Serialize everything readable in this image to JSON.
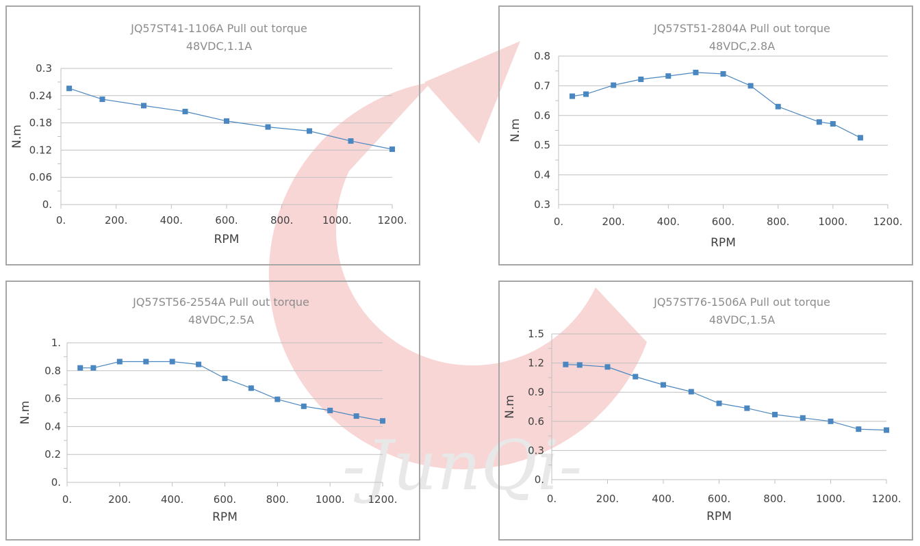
{
  "watermark": {
    "brand_text": "-JunQi-",
    "logo_color": "#f4c7c7",
    "text_color": "#e6e6e6"
  },
  "colors": {
    "series": "#4a86bf",
    "marker": "#4a86bf",
    "grid": "#bfbfbf",
    "frame": "#a6a6a6"
  },
  "chart_data": [
    {
      "type": "line",
      "title": "JQ57ST41-1106A Pull out torque",
      "subtitle": "48VDC,1.1A",
      "xlabel": "RPM",
      "ylabel": "N.m",
      "xlim": [
        0,
        1200
      ],
      "ylim": [
        0,
        0.3
      ],
      "xticks": [
        "0.",
        "200.",
        "400.",
        "600.",
        "800.",
        "1000.",
        "1200."
      ],
      "yticks": [
        "0.",
        "0.06",
        "0.12",
        "0.18",
        "0.24",
        "0.3"
      ],
      "grid": true,
      "series": [
        {
          "x": [
            30,
            150,
            300,
            450,
            600,
            750,
            900,
            1050,
            1200
          ],
          "y": [
            0.256,
            0.232,
            0.218,
            0.205,
            0.184,
            0.171,
            0.162,
            0.14,
            0.122
          ]
        }
      ]
    },
    {
      "type": "line",
      "title": "JQ57ST51-2804A Pull out torque",
      "subtitle": "48VDC,2.8A",
      "xlabel": "RPM",
      "ylabel": "N.m",
      "xlim": [
        0,
        1200
      ],
      "ylim": [
        0.3,
        0.8
      ],
      "xticks": [
        "0.",
        "200.",
        "400.",
        "600.",
        "800.",
        "1000.",
        "1200."
      ],
      "yticks": [
        "0.3",
        "0.4",
        "0.5",
        "0.6",
        "0.7",
        "0.8"
      ],
      "grid": true,
      "series": [
        {
          "x": [
            50,
            100,
            200,
            300,
            400,
            500,
            600,
            700,
            800,
            950,
            1000,
            1100
          ],
          "y": [
            0.665,
            0.672,
            0.702,
            0.722,
            0.733,
            0.745,
            0.74,
            0.7,
            0.63,
            0.578,
            0.572,
            0.525
          ]
        }
      ]
    },
    {
      "type": "line",
      "title": "JQ57ST56-2554A Pull out torque",
      "subtitle": "48VDC,2.5A",
      "xlabel": "RPM",
      "ylabel": "N.m",
      "xlim": [
        0,
        1200
      ],
      "ylim": [
        0,
        1
      ],
      "xticks": [
        "0.",
        "200.",
        "400.",
        "600.",
        "800.",
        "1000.",
        "1200."
      ],
      "yticks": [
        "0.",
        "0.2",
        "0.4",
        "0.6",
        "0.8",
        "1."
      ],
      "grid": true,
      "series": [
        {
          "x": [
            50,
            100,
            200,
            300,
            400,
            500,
            600,
            700,
            800,
            900,
            1000,
            1100,
            1200
          ],
          "y": [
            0.82,
            0.82,
            0.865,
            0.865,
            0.865,
            0.845,
            0.745,
            0.675,
            0.595,
            0.545,
            0.515,
            0.475,
            0.44
          ]
        }
      ]
    },
    {
      "type": "line",
      "title": "JQ57ST76-1506A Pull out torque",
      "subtitle": "48VDC,1.5A",
      "xlabel": "RPM",
      "ylabel": "N.m",
      "xlim": [
        0,
        1200
      ],
      "ylim": [
        0,
        1.5
      ],
      "xticks": [
        "0.",
        "200.",
        "400.",
        "600.",
        "800.",
        "1000.",
        "1200."
      ],
      "yticks": [
        "0.",
        "0.3",
        "0.6",
        "0.9",
        "1.2",
        "1.5"
      ],
      "grid": true,
      "series": [
        {
          "x": [
            50,
            100,
            200,
            300,
            400,
            500,
            600,
            700,
            800,
            900,
            1000,
            1100,
            1200
          ],
          "y": [
            1.185,
            1.18,
            1.16,
            1.06,
            0.975,
            0.905,
            0.785,
            0.735,
            0.67,
            0.635,
            0.6,
            0.52,
            0.51
          ]
        }
      ]
    }
  ]
}
